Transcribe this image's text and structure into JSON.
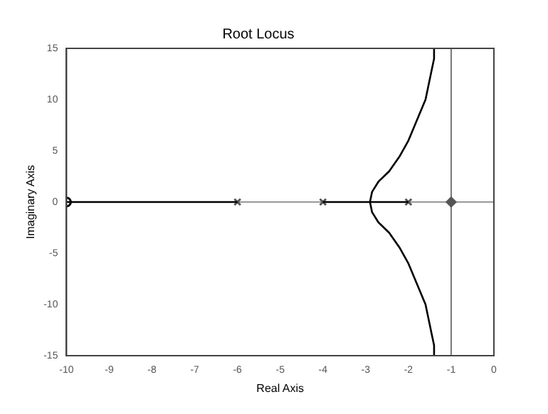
{
  "chart_data": {
    "type": "line",
    "title": "Root Locus",
    "xlabel": "Real Axis",
    "ylabel": "Imaginary Axis",
    "xlim": [
      -10,
      0
    ],
    "ylim": [
      -15,
      15
    ],
    "xticks": [
      -10,
      -9,
      -8,
      -7,
      -6,
      -5,
      -4,
      -3,
      -2,
      -1,
      0
    ],
    "yticks": [
      -15,
      -10,
      -5,
      0,
      5,
      10,
      15
    ],
    "grid": false,
    "legend": false,
    "marker": "none",
    "line_style": "solid",
    "ref_lines": [
      {
        "axis": "y",
        "value": 0,
        "color": "#999999"
      },
      {
        "axis": "x",
        "value": -1,
        "color": "#777777"
      }
    ],
    "series": [
      {
        "color": "#000000",
        "x": [
          -10,
          -6
        ],
        "values": [
          0,
          0
        ]
      },
      {
        "color": "#000000",
        "x": [
          -4,
          -2
        ],
        "values": [
          0,
          0
        ]
      },
      {
        "color": "#000000",
        "x": [
          -1.4,
          -1.4,
          -1.45,
          -1.6,
          -1.8,
          -2.0,
          -2.2,
          -2.45,
          -2.7,
          -2.85,
          -2.9,
          -2.85,
          -2.7,
          -2.45,
          -2.2,
          -2.0,
          -1.8,
          -1.6,
          -1.45,
          -1.4,
          -1.4
        ],
        "values": [
          15,
          14,
          13,
          10,
          8,
          6,
          4.5,
          3,
          2,
          1,
          0,
          -1,
          -2,
          -3,
          -4.5,
          -6,
          -8,
          -10,
          -13,
          -14,
          -15
        ]
      },
      {
        "type": "scatter",
        "color": "#555555",
        "marker": "cross",
        "x": [
          -6,
          -4,
          -2
        ],
        "values": [
          0,
          0,
          0
        ]
      },
      {
        "type": "scatter",
        "color": "#000000",
        "marker": "circle",
        "x": [
          -10
        ],
        "values": [
          0
        ]
      },
      {
        "type": "scatter",
        "color": "#555555",
        "marker": "diamond",
        "x": [
          -1
        ],
        "values": [
          0
        ]
      }
    ]
  }
}
